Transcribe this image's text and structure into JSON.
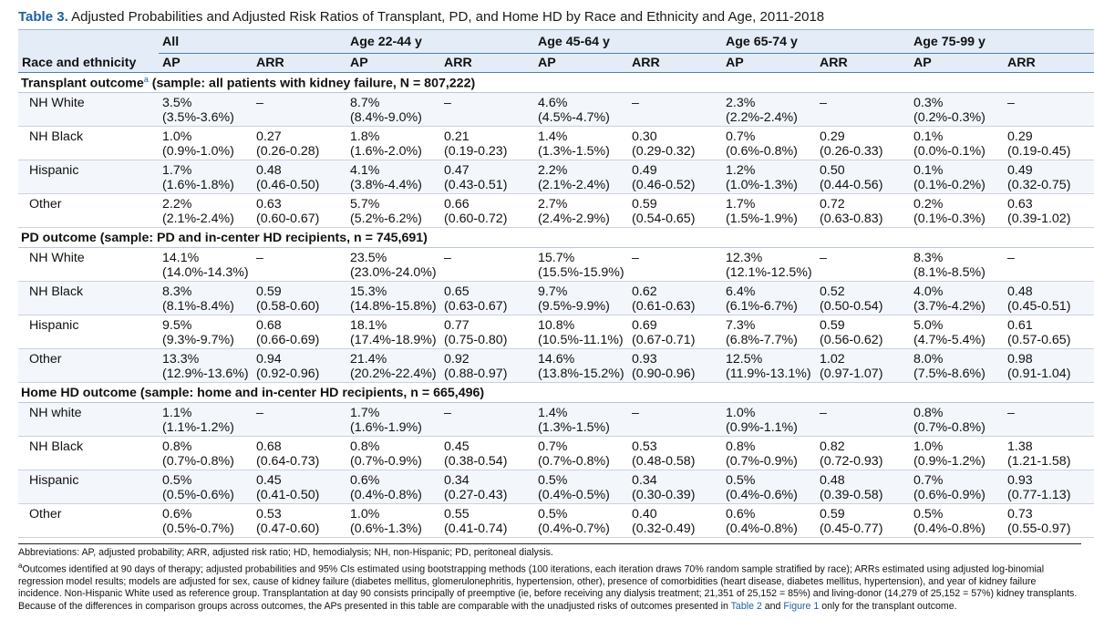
{
  "title": {
    "number": "Table 3.",
    "text": "Adjusted Probabilities and Adjusted Risk Ratios of Transplant, PD, and Home HD by Race and Ethnicity and Age, 2011-2018"
  },
  "header": {
    "groups": [
      "All",
      "Age 22-44 y",
      "Age 45-64 y",
      "Age 65-74 y",
      "Age 75-99 y"
    ],
    "row_label": "Race and ethnicity",
    "sub": [
      "AP",
      "ARR",
      "AP",
      "ARR",
      "AP",
      "ARR",
      "AP",
      "ARR",
      "AP",
      "ARR"
    ]
  },
  "sections": [
    {
      "title": "Transplant outcome",
      "sup": "a",
      "rest": " (sample: all patients with kidney failure, N = 807,222)",
      "rows": [
        {
          "label": "NH White",
          "cells": [
            {
              "v": "3.5%",
              "ci": "(3.5%-3.6%)"
            },
            {
              "v": "–",
              "ci": ""
            },
            {
              "v": "8.7%",
              "ci": "(8.4%-9.0%)"
            },
            {
              "v": "–",
              "ci": ""
            },
            {
              "v": "4.6%",
              "ci": "(4.5%-4.7%)"
            },
            {
              "v": "–",
              "ci": ""
            },
            {
              "v": "2.3%",
              "ci": "(2.2%-2.4%)"
            },
            {
              "v": "–",
              "ci": ""
            },
            {
              "v": "0.3%",
              "ci": "(0.2%-0.3%)"
            },
            {
              "v": "–",
              "ci": ""
            }
          ]
        },
        {
          "label": "NH Black",
          "cells": [
            {
              "v": "1.0%",
              "ci": "(0.9%-1.0%)"
            },
            {
              "v": "0.27",
              "ci": "(0.26-0.28)"
            },
            {
              "v": "1.8%",
              "ci": "(1.6%-2.0%)"
            },
            {
              "v": "0.21",
              "ci": "(0.19-0.23)"
            },
            {
              "v": "1.4%",
              "ci": "(1.3%-1.5%)"
            },
            {
              "v": "0.30",
              "ci": "(0.29-0.32)"
            },
            {
              "v": "0.7%",
              "ci": "(0.6%-0.8%)"
            },
            {
              "v": "0.29",
              "ci": "(0.26-0.33)"
            },
            {
              "v": "0.1%",
              "ci": "(0.0%-0.1%)"
            },
            {
              "v": "0.29",
              "ci": "(0.19-0.45)"
            }
          ]
        },
        {
          "label": "Hispanic",
          "cells": [
            {
              "v": "1.7%",
              "ci": "(1.6%-1.8%)"
            },
            {
              "v": "0.48",
              "ci": "(0.46-0.50)"
            },
            {
              "v": "4.1%",
              "ci": "(3.8%-4.4%)"
            },
            {
              "v": "0.47",
              "ci": "(0.43-0.51)"
            },
            {
              "v": "2.2%",
              "ci": "(2.1%-2.4%)"
            },
            {
              "v": "0.49",
              "ci": "(0.46-0.52)"
            },
            {
              "v": "1.2%",
              "ci": "(1.0%-1.3%)"
            },
            {
              "v": "0.50",
              "ci": "(0.44-0.56)"
            },
            {
              "v": "0.1%",
              "ci": "(0.1%-0.2%)"
            },
            {
              "v": "0.49",
              "ci": "(0.32-0.75)"
            }
          ]
        },
        {
          "label": "Other",
          "cells": [
            {
              "v": "2.2%",
              "ci": "(2.1%-2.4%)"
            },
            {
              "v": "0.63",
              "ci": "(0.60-0.67)"
            },
            {
              "v": "5.7%",
              "ci": "(5.2%-6.2%)"
            },
            {
              "v": "0.66",
              "ci": "(0.60-0.72)"
            },
            {
              "v": "2.7%",
              "ci": "(2.4%-2.9%)"
            },
            {
              "v": "0.59",
              "ci": "(0.54-0.65)"
            },
            {
              "v": "1.7%",
              "ci": "(1.5%-1.9%)"
            },
            {
              "v": "0.72",
              "ci": "(0.63-0.83)"
            },
            {
              "v": "0.2%",
              "ci": "(0.1%-0.3%)"
            },
            {
              "v": "0.63",
              "ci": "(0.39-1.02)"
            }
          ]
        }
      ]
    },
    {
      "title": "PD outcome (sample: PD and in-center HD recipients, n = 745,691)",
      "sup": "",
      "rest": "",
      "rows": [
        {
          "label": "NH White",
          "cells": [
            {
              "v": "14.1%",
              "ci": "(14.0%-14.3%)"
            },
            {
              "v": "–",
              "ci": ""
            },
            {
              "v": "23.5%",
              "ci": "(23.0%-24.0%)"
            },
            {
              "v": "–",
              "ci": ""
            },
            {
              "v": "15.7%",
              "ci": "(15.5%-15.9%)"
            },
            {
              "v": "–",
              "ci": ""
            },
            {
              "v": "12.3%",
              "ci": "(12.1%-12.5%)"
            },
            {
              "v": "–",
              "ci": ""
            },
            {
              "v": "8.3%",
              "ci": "(8.1%-8.5%)"
            },
            {
              "v": "–",
              "ci": ""
            }
          ]
        },
        {
          "label": "NH Black",
          "cells": [
            {
              "v": "8.3%",
              "ci": "(8.1%-8.4%)"
            },
            {
              "v": "0.59",
              "ci": "(0.58-0.60)"
            },
            {
              "v": "15.3%",
              "ci": "(14.8%-15.8%)"
            },
            {
              "v": "0.65",
              "ci": "(0.63-0.67)"
            },
            {
              "v": "9.7%",
              "ci": "(9.5%-9.9%)"
            },
            {
              "v": "0.62",
              "ci": "(0.61-0.63)"
            },
            {
              "v": "6.4%",
              "ci": "(6.1%-6.7%)"
            },
            {
              "v": "0.52",
              "ci": "(0.50-0.54)"
            },
            {
              "v": "4.0%",
              "ci": "(3.7%-4.2%)"
            },
            {
              "v": "0.48",
              "ci": "(0.45-0.51)"
            }
          ]
        },
        {
          "label": "Hispanic",
          "cells": [
            {
              "v": "9.5%",
              "ci": "(9.3%-9.7%)"
            },
            {
              "v": "0.68",
              "ci": "(0.66-0.69)"
            },
            {
              "v": "18.1%",
              "ci": "(17.4%-18.9%)"
            },
            {
              "v": "0.77",
              "ci": "(0.75-0.80)"
            },
            {
              "v": "10.8%",
              "ci": "(10.5%-11.1%)"
            },
            {
              "v": "0.69",
              "ci": "(0.67-0.71)"
            },
            {
              "v": "7.3%",
              "ci": "(6.8%-7.7%)"
            },
            {
              "v": "0.59",
              "ci": "(0.56-0.62)"
            },
            {
              "v": "5.0%",
              "ci": "(4.7%-5.4%)"
            },
            {
              "v": "0.61",
              "ci": "(0.57-0.65)"
            }
          ]
        },
        {
          "label": "Other",
          "cells": [
            {
              "v": "13.3%",
              "ci": "(12.9%-13.6%)"
            },
            {
              "v": "0.94",
              "ci": "(0.92-0.96)"
            },
            {
              "v": "21.4%",
              "ci": "(20.2%-22.4%)"
            },
            {
              "v": "0.92",
              "ci": "(0.88-0.97)"
            },
            {
              "v": "14.6%",
              "ci": "(13.8%-15.2%)"
            },
            {
              "v": "0.93",
              "ci": "(0.90-0.96)"
            },
            {
              "v": "12.5%",
              "ci": "(11.9%-13.1%)"
            },
            {
              "v": "1.02",
              "ci": "(0.97-1.07)"
            },
            {
              "v": "8.0%",
              "ci": "(7.5%-8.6%)"
            },
            {
              "v": "0.98",
              "ci": "(0.91-1.04)"
            }
          ]
        }
      ]
    },
    {
      "title": "Home HD outcome (sample: home and in-center HD recipients, n = 665,496)",
      "sup": "",
      "rest": "",
      "rows": [
        {
          "label": "NH white",
          "cells": [
            {
              "v": "1.1%",
              "ci": "(1.1%-1.2%)"
            },
            {
              "v": "–",
              "ci": ""
            },
            {
              "v": "1.7%",
              "ci": "(1.6%-1.9%)"
            },
            {
              "v": "–",
              "ci": ""
            },
            {
              "v": "1.4%",
              "ci": "(1.3%-1.5%)"
            },
            {
              "v": "–",
              "ci": ""
            },
            {
              "v": "1.0%",
              "ci": "(0.9%-1.1%)"
            },
            {
              "v": "–",
              "ci": ""
            },
            {
              "v": "0.8%",
              "ci": "(0.7%-0.8%)"
            },
            {
              "v": "–",
              "ci": ""
            }
          ]
        },
        {
          "label": "NH Black",
          "cells": [
            {
              "v": "0.8%",
              "ci": "(0.7%-0.8%)"
            },
            {
              "v": "0.68",
              "ci": "(0.64-0.73)"
            },
            {
              "v": "0.8%",
              "ci": "(0.7%-0.9%)"
            },
            {
              "v": "0.45",
              "ci": "(0.38-0.54)"
            },
            {
              "v": "0.7%",
              "ci": "(0.7%-0.8%)"
            },
            {
              "v": "0.53",
              "ci": "(0.48-0.58)"
            },
            {
              "v": "0.8%",
              "ci": "(0.7%-0.9%)"
            },
            {
              "v": "0.82",
              "ci": "(0.72-0.93)"
            },
            {
              "v": "1.0%",
              "ci": "(0.9%-1.2%)"
            },
            {
              "v": "1.38",
              "ci": "(1.21-1.58)"
            }
          ]
        },
        {
          "label": "Hispanic",
          "cells": [
            {
              "v": "0.5%",
              "ci": "(0.5%-0.6%)"
            },
            {
              "v": "0.45",
              "ci": "(0.41-0.50)"
            },
            {
              "v": "0.6%",
              "ci": "(0.4%-0.8%)"
            },
            {
              "v": "0.34",
              "ci": "(0.27-0.43)"
            },
            {
              "v": "0.5%",
              "ci": "(0.4%-0.5%)"
            },
            {
              "v": "0.34",
              "ci": "(0.30-0.39)"
            },
            {
              "v": "0.5%",
              "ci": "(0.4%-0.6%)"
            },
            {
              "v": "0.48",
              "ci": "(0.39-0.58)"
            },
            {
              "v": "0.7%",
              "ci": "(0.6%-0.9%)"
            },
            {
              "v": "0.93",
              "ci": "(0.77-1.13)"
            }
          ]
        },
        {
          "label": "Other",
          "cells": [
            {
              "v": "0.6%",
              "ci": "(0.5%-0.7%)"
            },
            {
              "v": "0.53",
              "ci": "(0.47-0.60)"
            },
            {
              "v": "1.0%",
              "ci": "(0.6%-1.3%)"
            },
            {
              "v": "0.55",
              "ci": "(0.41-0.74)"
            },
            {
              "v": "0.5%",
              "ci": "(0.4%-0.7%)"
            },
            {
              "v": "0.40",
              "ci": "(0.32-0.49)"
            },
            {
              "v": "0.6%",
              "ci": "(0.4%-0.8%)"
            },
            {
              "v": "0.59",
              "ci": "(0.45-0.77)"
            },
            {
              "v": "0.5%",
              "ci": "(0.4%-0.8%)"
            },
            {
              "v": "0.73",
              "ci": "(0.55-0.97)"
            }
          ]
        }
      ]
    }
  ],
  "footnotes": {
    "abbreviations": "Abbreviations: AP, adjusted probability; ARR, adjusted risk ratio; HD, hemodialysis; NH, non-Hispanic; PD, peritoneal dialysis.",
    "note_mark": "a",
    "note_text": "Outcomes identified at 90 days of therapy; adjusted probabilities and 95% CIs estimated using bootstrapping methods (100 iterations, each iteration draws 70% random sample stratified by race); ARRs estimated using adjusted log-binomial regression model results; models are adjusted for sex, cause of kidney failure (diabetes mellitus, glomerulonephritis, hypertension, other), presence of comorbidities (heart disease, diabetes mellitus, hypertension), and year of kidney failure incidence. Non-Hispanic White used as reference group. Transplantation at day 90 consists principally of preemptive (ie, before receiving any dialysis treatment; 21,351 of 25,152 = 85%) and living-donor (14,279 of 25,152 = 57%) kidney transplants. Because of the differences in comparison groups across outcomes, the APs presented in this table are comparable with the unadjusted risks of outcomes presented in ",
    "link1": "Table 2",
    "and_text": " and ",
    "link2": "Figure 1",
    "only_text": " only for the transplant outcome."
  },
  "colors": {
    "accent": "#1f5f9e",
    "header_bg": "#e3ecf7",
    "stripe_bg": "#f3f6fa"
  }
}
